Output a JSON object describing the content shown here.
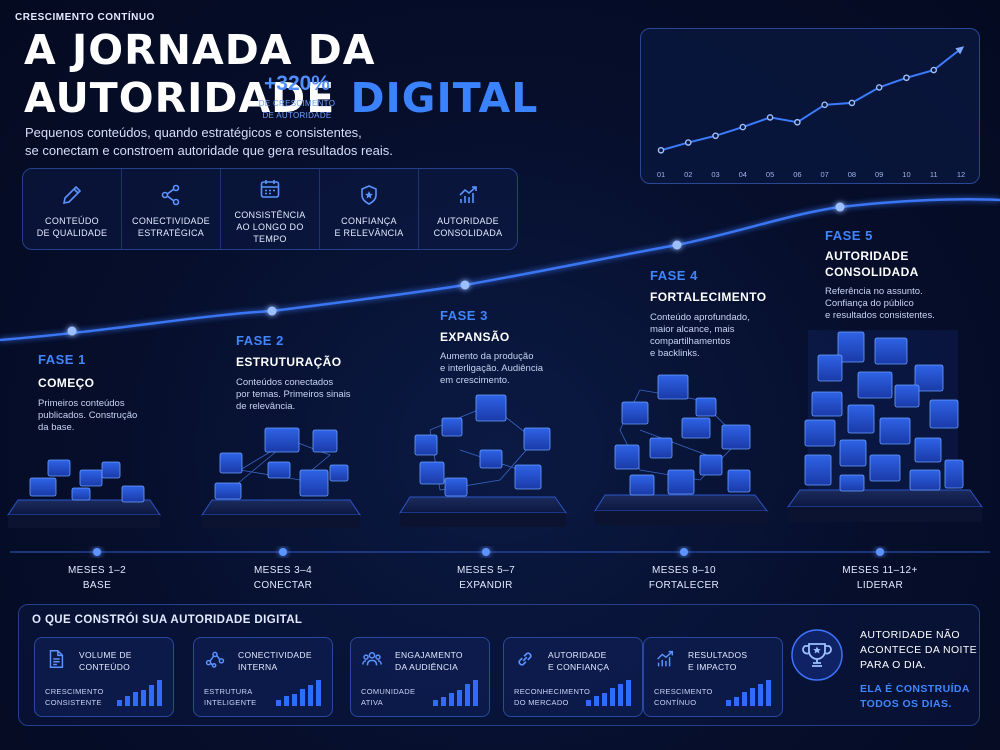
{
  "header": {
    "title_line1": "A JORNADA DA",
    "title_line2_main": "AUTORIDADE",
    "title_line2_accent": "DIGITAL",
    "subtitle_line1": "Pequenos conteúdos, quando estratégicos e consistentes,",
    "subtitle_line2": "se conectam e constroem autoridade que gera resultados reais."
  },
  "pillars": [
    {
      "icon": "pencil-icon",
      "line1": "CONTEÚDO",
      "line2": "DE QUALIDADE"
    },
    {
      "icon": "network-icon",
      "line1": "CONECTIVIDADE",
      "line2": "ESTRATÉGICA"
    },
    {
      "icon": "calendar-icon",
      "line1": "CONSISTÊNCIA",
      "line2": "AO LONGO DO TEMPO"
    },
    {
      "icon": "shield-star-icon",
      "line1": "CONFIANÇA",
      "line2": "E RELEVÂNCIA"
    },
    {
      "icon": "growth-chart-icon",
      "line1": "AUTORIDADE",
      "line2": "CONSOLIDADA"
    }
  ],
  "growth": {
    "title": "CRESCIMENTO CONTÍNUO",
    "percent": "+320%",
    "desc_line1": "DE CRESCIMENTO",
    "desc_line2": "DE AUTORIDADE"
  },
  "chart_data": {
    "type": "line",
    "title": "CRESCIMENTO CONTÍNUO",
    "categories": [
      "01",
      "02",
      "03",
      "04",
      "05",
      "06",
      "07",
      "08",
      "09",
      "10",
      "11",
      "12"
    ],
    "values": [
      8,
      16,
      23,
      32,
      42,
      37,
      55,
      57,
      73,
      83,
      91,
      113
    ],
    "ylim": [
      0,
      120
    ],
    "grid": false,
    "color": "#3b7bff"
  },
  "phases": [
    {
      "title": "FASE 1",
      "name": "COMEÇO",
      "desc": [
        "Primeiros conteúdos",
        "publicados. Construção",
        "da base."
      ]
    },
    {
      "title": "FASE 2",
      "name": "ESTRUTURAÇÃO",
      "desc": [
        "Conteúdos conectados",
        "por temas. Primeiros sinais",
        "de relevância."
      ]
    },
    {
      "title": "FASE 3",
      "name": "EXPANSÃO",
      "desc": [
        "Aumento da produção",
        "e interligação. Audiência",
        "em crescimento."
      ]
    },
    {
      "title": "FASE 4",
      "name": "FORTALECIMENTO",
      "desc": [
        "Conteúdo aprofundado,",
        "maior alcance, mais",
        "compartilhamentos",
        "e backlinks."
      ]
    },
    {
      "title": "FASE 5",
      "name": "AUTORIDADE CONSOLIDADA",
      "name_line1": "AUTORIDADE",
      "name_line2": "CONSOLIDADA",
      "desc": [
        "Referência no assunto.",
        "Confiança do público",
        "e resultados consistentes."
      ]
    }
  ],
  "timeline": [
    {
      "period": "MESES 1–2",
      "label": "BASE"
    },
    {
      "period": "MESES 3–4",
      "label": "CONECTAR"
    },
    {
      "period": "MESES 5–7",
      "label": "EXPANDIR"
    },
    {
      "period": "MESES 8–10",
      "label": "FORTALECER"
    },
    {
      "period": "MESES 11–12+",
      "label": "LIDERAR"
    }
  ],
  "bottom": {
    "title": "O QUE CONSTRÓI SUA AUTORIDADE DIGITAL",
    "cards": [
      {
        "icon": "document-icon",
        "title": [
          "VOLUME DE",
          "CONTEÚDO"
        ],
        "sub": [
          "CRESCIMENTO",
          "CONSISTENTE"
        ]
      },
      {
        "icon": "network-icon",
        "title": [
          "CONECTIVIDADE",
          "INTERNA"
        ],
        "sub": [
          "ESTRUTURA",
          "INTELIGENTE"
        ]
      },
      {
        "icon": "people-icon",
        "title": [
          "ENGAJAMENTO",
          "DA AUDIÊNCIA"
        ],
        "sub": [
          "COMUNIDADE",
          "ATIVA"
        ]
      },
      {
        "icon": "link-icon",
        "title": [
          "AUTORIDADE",
          "E CONFIANÇA"
        ],
        "sub": [
          "RECONHECIMENTO",
          "DO MERCADO"
        ]
      },
      {
        "icon": "growth-chart-icon",
        "title": [
          "RESULTADOS",
          "E IMPACTO"
        ],
        "sub": [
          "CRESCIMENTO",
          "CONTÍNUO"
        ]
      }
    ],
    "quote_line1": "AUTORIDADE NÃO",
    "quote_line2": "ACONTECE DA NOITE",
    "quote_line3": "PARA O DIA.",
    "quote_accent_line1": "ELA É CONSTRUÍDA",
    "quote_accent_line2": "TODOS OS DIAS.",
    "quote_icon": "trophy-icon"
  },
  "colors": {
    "accent": "#3b82ff",
    "background": "#060e2b",
    "glow": "#4d8dff"
  }
}
